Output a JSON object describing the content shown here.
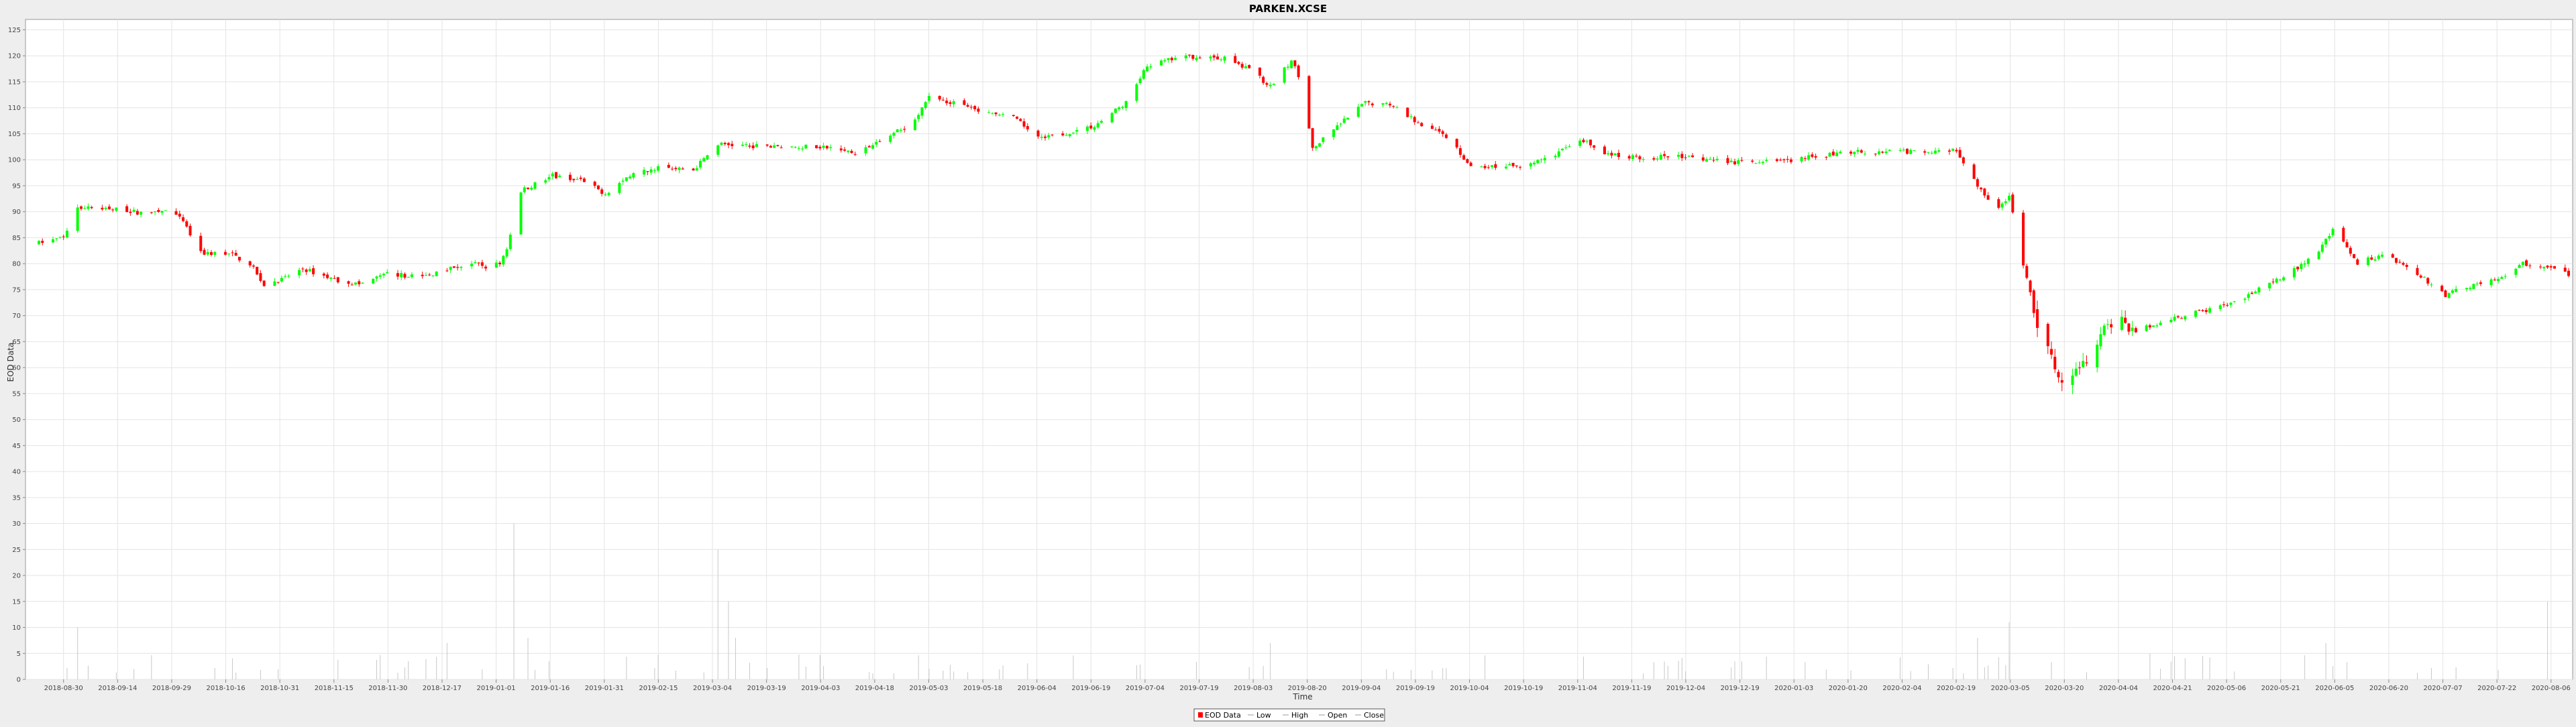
{
  "chart_data": {
    "type": "candlestick",
    "title": "PARKEN.XCSE",
    "xlabel": "Time",
    "ylabel": "EOD Data",
    "ylim": [
      0,
      127
    ],
    "yticks": [
      0,
      5,
      10,
      15,
      20,
      25,
      30,
      35,
      40,
      45,
      50,
      55,
      60,
      65,
      70,
      75,
      80,
      85,
      90,
      95,
      100,
      105,
      110,
      115,
      120,
      125
    ],
    "grid": true,
    "legend_position": "bottom-center",
    "legend": [
      "EOD Data",
      "Low",
      "High",
      "Open",
      "Close"
    ],
    "colors": {
      "up": "#00ff00",
      "down": "#ff0000",
      "volume": "#c8c8c8",
      "grid": "#e4e4e4"
    },
    "x_range": [
      "2018-08-23",
      "2020-08-11"
    ],
    "x_tick_labels": [
      "2018-08-30",
      "2018-09-14",
      "2018-09-29",
      "2018-10-16",
      "2018-10-31",
      "2018-11-15",
      "2018-11-30",
      "2018-12-17",
      "2019-01-01",
      "2019-01-16",
      "2019-01-31",
      "2019-02-15",
      "2019-03-04",
      "2019-03-19",
      "2019-04-03",
      "2019-04-18",
      "2019-05-03",
      "2019-05-18",
      "2019-06-04",
      "2019-06-19",
      "2019-07-04",
      "2019-07-19",
      "2019-08-03",
      "2019-08-20",
      "2019-09-04",
      "2019-09-19",
      "2019-10-04",
      "2019-10-19",
      "2019-11-04",
      "2019-11-19",
      "2019-12-04",
      "2019-12-19",
      "2020-01-03",
      "2020-01-20",
      "2020-02-04",
      "2020-02-19",
      "2020-03-05",
      "2020-03-20",
      "2020-04-04",
      "2020-04-21",
      "2020-05-06",
      "2020-05-21",
      "2020-06-05",
      "2020-06-20",
      "2020-07-07",
      "2020-07-22",
      "2020-08-06"
    ],
    "price_path": [
      [
        "2018-08-23",
        84
      ],
      [
        "2018-08-30",
        85
      ],
      [
        "2018-09-03",
        91
      ],
      [
        "2018-09-14",
        90.5
      ],
      [
        "2018-09-24",
        89.5
      ],
      [
        "2018-09-29",
        90.5
      ],
      [
        "2018-10-03",
        88
      ],
      [
        "2018-10-08",
        82
      ],
      [
        "2018-10-16",
        82
      ],
      [
        "2018-10-22",
        80
      ],
      [
        "2018-10-26",
        76
      ],
      [
        "2018-10-31",
        77
      ],
      [
        "2018-11-06",
        79
      ],
      [
        "2018-11-15",
        77
      ],
      [
        "2018-11-22",
        76
      ],
      [
        "2018-11-30",
        78
      ],
      [
        "2018-12-10",
        77.5
      ],
      [
        "2018-12-17",
        79
      ],
      [
        "2018-12-24",
        80
      ],
      [
        "2018-12-28",
        79.5
      ],
      [
        "2019-01-01",
        80
      ],
      [
        "2019-01-03",
        83
      ],
      [
        "2019-01-07",
        94
      ],
      [
        "2019-01-16",
        97
      ],
      [
        "2019-01-24",
        96
      ],
      [
        "2019-01-31",
        93.5
      ],
      [
        "2019-02-07",
        97
      ],
      [
        "2019-02-15",
        98.5
      ],
      [
        "2019-02-25",
        98
      ],
      [
        "2019-03-04",
        103
      ],
      [
        "2019-03-19",
        102.5
      ],
      [
        "2019-04-03",
        102.5
      ],
      [
        "2019-04-12",
        101.5
      ],
      [
        "2019-04-18",
        103
      ],
      [
        "2019-04-28",
        107
      ],
      [
        "2019-05-03",
        112
      ],
      [
        "2019-05-10",
        111
      ],
      [
        "2019-05-18",
        109
      ],
      [
        "2019-05-27",
        108
      ],
      [
        "2019-06-04",
        104
      ],
      [
        "2019-06-19",
        106.5
      ],
      [
        "2019-06-28",
        111
      ],
      [
        "2019-07-04",
        118
      ],
      [
        "2019-07-12",
        119.5
      ],
      [
        "2019-07-19",
        120
      ],
      [
        "2019-07-26",
        119.5
      ],
      [
        "2019-08-03",
        117
      ],
      [
        "2019-08-08",
        114
      ],
      [
        "2019-08-14",
        119
      ],
      [
        "2019-08-17",
        115
      ],
      [
        "2019-08-20",
        102
      ],
      [
        "2019-08-28",
        107
      ],
      [
        "2019-09-04",
        111
      ],
      [
        "2019-09-12",
        110.5
      ],
      [
        "2019-09-19",
        107
      ],
      [
        "2019-09-28",
        104
      ],
      [
        "2019-10-04",
        98.5
      ],
      [
        "2019-10-19",
        99
      ],
      [
        "2019-10-28",
        101
      ],
      [
        "2019-11-04",
        104
      ],
      [
        "2019-11-12",
        101
      ],
      [
        "2019-11-19",
        100.5
      ],
      [
        "2019-12-04",
        100.5
      ],
      [
        "2019-12-19",
        99.5
      ],
      [
        "2020-01-03",
        100
      ],
      [
        "2020-01-20",
        101.5
      ],
      [
        "2020-02-04",
        101.5
      ],
      [
        "2020-02-19",
        102
      ],
      [
        "2020-02-25",
        95
      ],
      [
        "2020-03-01",
        90
      ],
      [
        "2020-03-05",
        93
      ],
      [
        "2020-03-09",
        80
      ],
      [
        "2020-03-13",
        68
      ],
      [
        "2020-03-17",
        62
      ],
      [
        "2020-03-20",
        58
      ],
      [
        "2020-03-27",
        62
      ],
      [
        "2020-04-04",
        70
      ],
      [
        "2020-04-10",
        67
      ],
      [
        "2020-04-21",
        69.5
      ],
      [
        "2020-05-06",
        72
      ],
      [
        "2020-05-21",
        77
      ],
      [
        "2020-06-01",
        82
      ],
      [
        "2020-06-05",
        87
      ],
      [
        "2020-06-12",
        80
      ],
      [
        "2020-06-20",
        82
      ],
      [
        "2020-07-01",
        77
      ],
      [
        "2020-07-07",
        74
      ],
      [
        "2020-07-15",
        76
      ],
      [
        "2020-07-22",
        77
      ],
      [
        "2020-07-29",
        80
      ],
      [
        "2020-08-06",
        79
      ],
      [
        "2020-08-11",
        78
      ]
    ],
    "volume_spikes": [
      [
        "2019-01-05",
        30
      ],
      [
        "2019-01-09",
        8
      ],
      [
        "2019-03-04",
        25
      ],
      [
        "2019-03-07",
        15
      ],
      [
        "2019-03-09",
        8
      ],
      [
        "2018-09-03",
        10
      ],
      [
        "2020-03-05",
        11
      ],
      [
        "2020-08-05",
        15
      ],
      [
        "2019-08-08",
        7
      ],
      [
        "2018-12-17",
        7
      ],
      [
        "2020-02-25",
        8
      ],
      [
        "2020-06-03",
        7
      ]
    ]
  }
}
